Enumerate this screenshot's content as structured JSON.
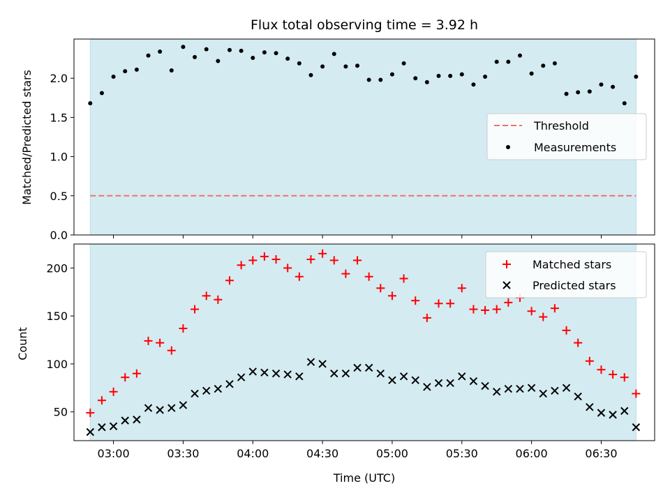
{
  "chart_data": [
    {
      "type": "scatter",
      "title": "Flux total observing time = 3.92 h",
      "ylabel": "Matched/Predicted stars",
      "xlabel": "",
      "xlim": [
        "02:43",
        "06:53"
      ],
      "ylim": [
        0,
        2.5
      ],
      "yticks": [
        "0.0",
        "0.5",
        "1.0",
        "1.5",
        "2.0"
      ],
      "grid": false,
      "legend_position": "center-right",
      "observing_window": [
        "02:50",
        "06:45"
      ],
      "series": [
        {
          "name": "Measurements",
          "kind": "scatter",
          "color": "#000000",
          "x": [
            "02:50",
            "02:55",
            "03:00",
            "03:05",
            "03:10",
            "03:15",
            "03:20",
            "03:25",
            "03:30",
            "03:35",
            "03:40",
            "03:45",
            "03:50",
            "03:55",
            "04:00",
            "04:05",
            "04:10",
            "04:15",
            "04:20",
            "04:25",
            "04:30",
            "04:35",
            "04:40",
            "04:45",
            "04:50",
            "04:55",
            "05:00",
            "05:05",
            "05:10",
            "05:15",
            "05:20",
            "05:25",
            "05:30",
            "05:35",
            "05:40",
            "05:45",
            "05:50",
            "05:55",
            "06:00",
            "06:05",
            "06:10",
            "06:15",
            "06:20",
            "06:25",
            "06:30",
            "06:35",
            "06:40",
            "06:45"
          ],
          "y": [
            1.68,
            1.81,
            2.02,
            2.09,
            2.11,
            2.29,
            2.34,
            2.1,
            2.4,
            2.27,
            2.37,
            2.22,
            2.36,
            2.35,
            2.26,
            2.33,
            2.32,
            2.25,
            2.19,
            2.04,
            2.15,
            2.31,
            2.15,
            2.16,
            1.98,
            1.98,
            2.05,
            2.19,
            2.0,
            1.95,
            2.03,
            2.03,
            2.05,
            1.92,
            2.02,
            2.21,
            2.21,
            2.29,
            2.06,
            2.16,
            2.19,
            1.8,
            1.82,
            1.83,
            1.92,
            1.89,
            1.68,
            2.02
          ]
        },
        {
          "name": "Threshold",
          "kind": "hline",
          "color": "#f07070",
          "value": 0.5
        }
      ]
    },
    {
      "type": "scatter",
      "title": "",
      "ylabel": "Count",
      "xlabel": "Time (UTC)",
      "xlim": [
        "02:43",
        "06:53"
      ],
      "ylim": [
        20,
        225
      ],
      "yticks": [
        "50",
        "100",
        "150",
        "200"
      ],
      "xticks": [
        "03:00",
        "03:30",
        "04:00",
        "04:30",
        "05:00",
        "05:30",
        "06:00",
        "06:30"
      ],
      "grid": false,
      "legend_position": "top-right",
      "observing_window": [
        "02:50",
        "06:45"
      ],
      "series": [
        {
          "name": "Matched stars",
          "marker": "+",
          "color": "#ff0000",
          "x": [
            "02:50",
            "02:55",
            "03:00",
            "03:05",
            "03:10",
            "03:15",
            "03:20",
            "03:25",
            "03:30",
            "03:35",
            "03:40",
            "03:45",
            "03:50",
            "03:55",
            "04:00",
            "04:05",
            "04:10",
            "04:15",
            "04:20",
            "04:25",
            "04:30",
            "04:35",
            "04:40",
            "04:45",
            "04:50",
            "04:55",
            "05:00",
            "05:05",
            "05:10",
            "05:15",
            "05:20",
            "05:25",
            "05:30",
            "05:35",
            "05:40",
            "05:45",
            "05:50",
            "05:55",
            "06:00",
            "06:05",
            "06:10",
            "06:15",
            "06:20",
            "06:25",
            "06:30",
            "06:35",
            "06:40",
            "06:45"
          ],
          "y": [
            49,
            62,
            71,
            86,
            90,
            124,
            122,
            114,
            137,
            157,
            171,
            167,
            187,
            203,
            208,
            212,
            209,
            200,
            191,
            209,
            215,
            208,
            194,
            208,
            191,
            179,
            171,
            189,
            166,
            148,
            163,
            163,
            179,
            157,
            156,
            157,
            164,
            169,
            155,
            149,
            158,
            135,
            122,
            103,
            94,
            89,
            86,
            69
          ]
        },
        {
          "name": "Predicted stars",
          "marker": "x",
          "color": "#000000",
          "x": [
            "02:50",
            "02:55",
            "03:00",
            "03:05",
            "03:10",
            "03:15",
            "03:20",
            "03:25",
            "03:30",
            "03:35",
            "03:40",
            "03:45",
            "03:50",
            "03:55",
            "04:00",
            "04:05",
            "04:10",
            "04:15",
            "04:20",
            "04:25",
            "04:30",
            "04:35",
            "04:40",
            "04:45",
            "04:50",
            "04:55",
            "05:00",
            "05:05",
            "05:10",
            "05:15",
            "05:20",
            "05:25",
            "05:30",
            "05:35",
            "05:40",
            "05:45",
            "05:50",
            "05:55",
            "06:00",
            "06:05",
            "06:10",
            "06:15",
            "06:20",
            "06:25",
            "06:30",
            "06:35",
            "06:40",
            "06:45"
          ],
          "y": [
            29,
            34,
            35,
            41,
            42,
            54,
            52,
            54,
            57,
            69,
            72,
            74,
            79,
            86,
            92,
            91,
            90,
            89,
            87,
            102,
            100,
            90,
            90,
            96,
            96,
            90,
            83,
            87,
            83,
            76,
            80,
            80,
            87,
            82,
            77,
            71,
            74,
            74,
            75,
            69,
            72,
            75,
            66,
            55,
            49,
            47,
            51,
            34
          ]
        }
      ]
    }
  ],
  "colors": {
    "observing_window": "#d4ebf1",
    "matched": "#ff0000",
    "predicted": "#000000",
    "threshold": "#f07070"
  }
}
